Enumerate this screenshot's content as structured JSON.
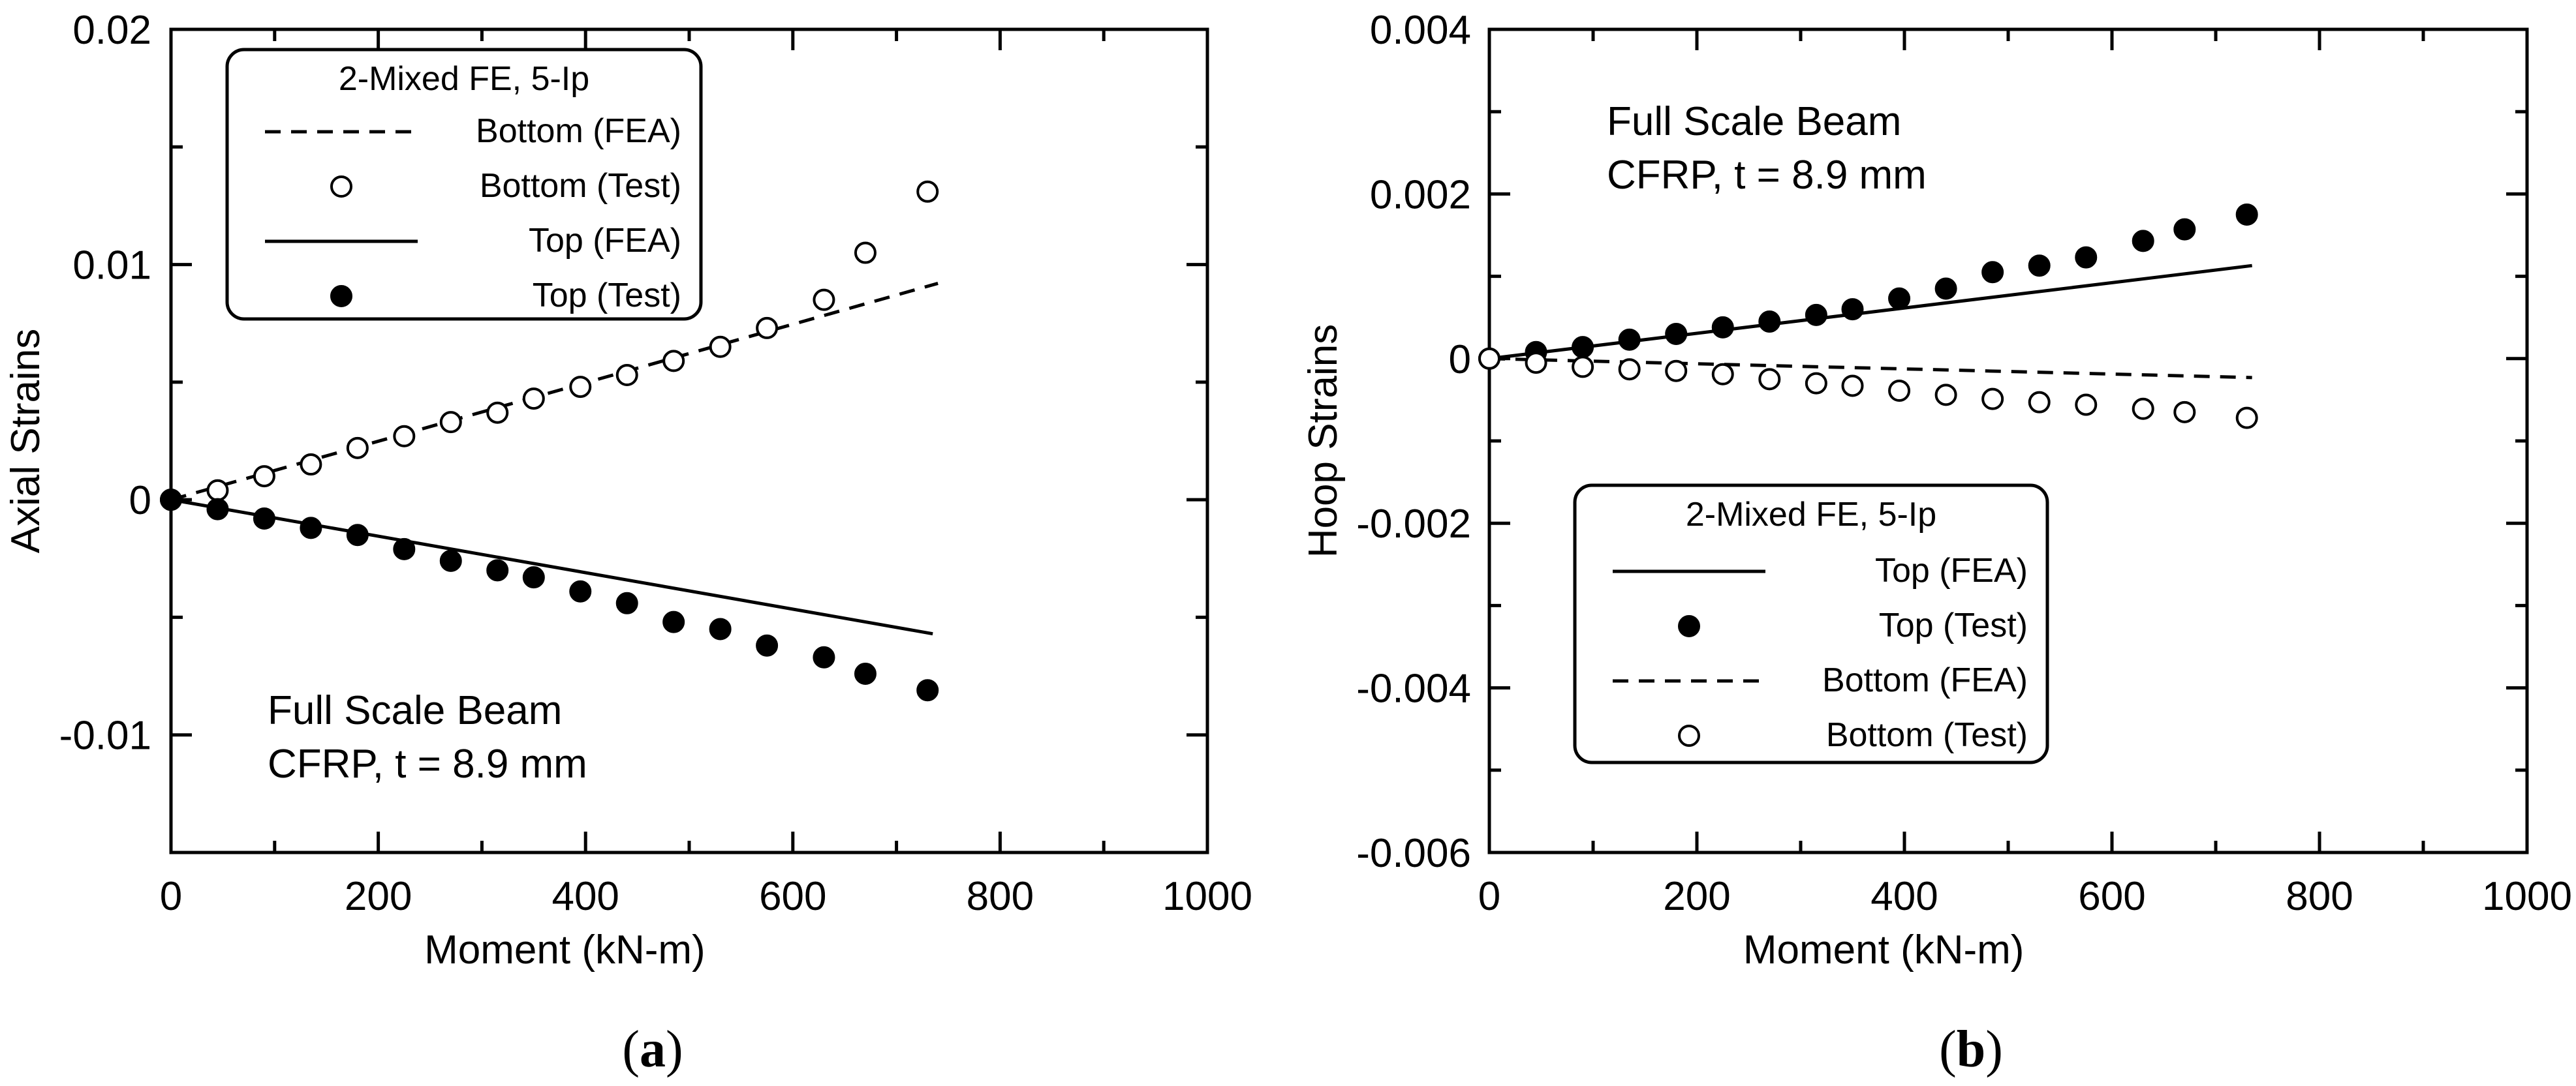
{
  "chart_data": [
    {
      "type": "line",
      "panel_label_open": "(",
      "panel_label_letter": "a",
      "panel_label_close": ")",
      "xlabel": "Moment (kN-m)",
      "ylabel": "Axial Strains",
      "xlim": [
        0,
        1000
      ],
      "ylim": [
        -0.015,
        0.02
      ],
      "x_ticks": [
        0,
        200,
        400,
        600,
        800,
        1000
      ],
      "x_tick_labels": [
        "0",
        "200",
        "400",
        "600",
        "800",
        "1000"
      ],
      "y_ticks": [
        -0.01,
        0,
        0.01,
        0.02
      ],
      "y_tick_labels": [
        "-0.01",
        "0",
        "0.01",
        "0.02"
      ],
      "legend": {
        "title": "2-Mixed FE, 5-Ip",
        "placement": "top-left",
        "entries": [
          {
            "label": "Bottom (FEA)",
            "style": "dashed"
          },
          {
            "label": "Bottom (Test)",
            "style": "open-circle"
          },
          {
            "label": "Top (FEA)",
            "style": "solid"
          },
          {
            "label": "Top (Test)",
            "style": "filled-circle"
          }
        ]
      },
      "annotation": [
        "Full Scale Beam",
        "CFRP, t = 8.9 mm"
      ],
      "annotation_placement": "bottom-left",
      "series": [
        {
          "name": "Bottom (FEA)",
          "style": "dashed",
          "x": [
            0,
            740
          ],
          "y": [
            0,
            0.0092
          ]
        },
        {
          "name": "Bottom (Test)",
          "style": "open-circle",
          "x": [
            0,
            45,
            90,
            135,
            180,
            225,
            270,
            315,
            350,
            395,
            440,
            485,
            530,
            575,
            630,
            670,
            730
          ],
          "y": [
            0,
            0.0004,
            0.001,
            0.0015,
            0.0022,
            0.0027,
            0.0033,
            0.0037,
            0.0043,
            0.0048,
            0.0053,
            0.0059,
            0.0065,
            0.0073,
            0.0085,
            0.0105,
            0.0131
          ]
        },
        {
          "name": "Top (FEA)",
          "style": "solid",
          "x": [
            0,
            735
          ],
          "y": [
            0,
            -0.0057
          ]
        },
        {
          "name": "Top (Test)",
          "style": "filled-circle",
          "x": [
            0,
            45,
            90,
            135,
            180,
            225,
            270,
            315,
            350,
            395,
            440,
            485,
            530,
            575,
            630,
            670,
            730
          ],
          "y": [
            0,
            -0.0004,
            -0.0008,
            -0.0012,
            -0.0015,
            -0.0021,
            -0.0026,
            -0.003,
            -0.0033,
            -0.0039,
            -0.0044,
            -0.0052,
            -0.0055,
            -0.0062,
            -0.0067,
            -0.0074,
            -0.0081
          ]
        }
      ]
    },
    {
      "type": "line",
      "panel_label_open": "(",
      "panel_label_letter": "b",
      "panel_label_close": ")",
      "xlabel": "Moment (kN-m)",
      "ylabel": "Hoop Strains",
      "xlim": [
        0,
        1000
      ],
      "ylim": [
        -0.006,
        0.004
      ],
      "x_ticks": [
        0,
        200,
        400,
        600,
        800,
        1000
      ],
      "x_tick_labels": [
        "0",
        "200",
        "400",
        "600",
        "800",
        "1000"
      ],
      "y_ticks": [
        -0.006,
        -0.004,
        -0.002,
        0,
        0.002,
        0.004
      ],
      "y_tick_labels": [
        "-0.006",
        "-0.004",
        "-0.002",
        "0",
        "0.002",
        "0.004"
      ],
      "legend": {
        "title": "2-Mixed FE, 5-Ip",
        "placement": "bottom-center",
        "entries": [
          {
            "label": "Top (FEA)",
            "style": "solid"
          },
          {
            "label": "Top (Test)",
            "style": "filled-circle"
          },
          {
            "label": "Bottom (FEA)",
            "style": "dashed"
          },
          {
            "label": "Bottom (Test)",
            "style": "open-circle"
          }
        ]
      },
      "annotation": [
        "Full Scale Beam",
        "CFRP, t = 8.9 mm"
      ],
      "annotation_placement": "top-left",
      "series": [
        {
          "name": "Top (FEA)",
          "style": "solid",
          "x": [
            0,
            735
          ],
          "y": [
            0,
            0.00113
          ]
        },
        {
          "name": "Top (Test)",
          "style": "filled-circle",
          "x": [
            0,
            45,
            90,
            135,
            180,
            225,
            270,
            315,
            350,
            395,
            440,
            485,
            530,
            575,
            630,
            670,
            730
          ],
          "y": [
            0,
            8e-05,
            0.00014,
            0.00023,
            0.0003,
            0.00038,
            0.00045,
            0.00053,
            0.0006,
            0.00073,
            0.00085,
            0.00105,
            0.00113,
            0.00123,
            0.00143,
            0.00157,
            0.00175
          ]
        },
        {
          "name": "Bottom (FEA)",
          "style": "dashed",
          "x": [
            0,
            735
          ],
          "y": [
            0,
            -0.00023
          ]
        },
        {
          "name": "Bottom (Test)",
          "style": "open-circle",
          "x": [
            0,
            45,
            90,
            135,
            180,
            225,
            270,
            315,
            350,
            395,
            440,
            485,
            530,
            575,
            630,
            670,
            730
          ],
          "y": [
            0,
            -5e-05,
            -0.0001,
            -0.00013,
            -0.00015,
            -0.00019,
            -0.00025,
            -0.0003,
            -0.00033,
            -0.00039,
            -0.00044,
            -0.00049,
            -0.00053,
            -0.00056,
            -0.00061,
            -0.00065,
            -0.00072
          ]
        }
      ]
    }
  ]
}
